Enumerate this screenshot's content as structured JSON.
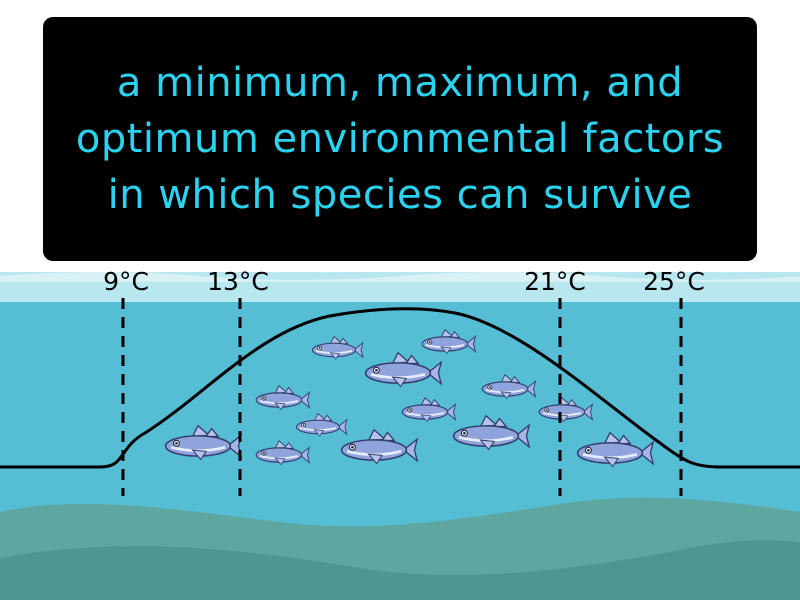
{
  "caption": {
    "text": "a minimum, maximum, and optimum environmental factors in which species can survive"
  },
  "temperature_markers": [
    {
      "label": "9°C"
    },
    {
      "label": "13°C"
    },
    {
      "label": "21°C"
    },
    {
      "label": "25°C"
    }
  ],
  "colors": {
    "caption_background": "#000000",
    "caption_text": "#2ad4f0",
    "sky": "#ffffff",
    "water_surface": "#b9e7ef",
    "water": "#55bed4",
    "seabed_light": "#5ea7a0",
    "seabed_dark": "#4e968f",
    "tolerance_curve": "#000000",
    "fish_body": "#8fa3dc"
  }
}
